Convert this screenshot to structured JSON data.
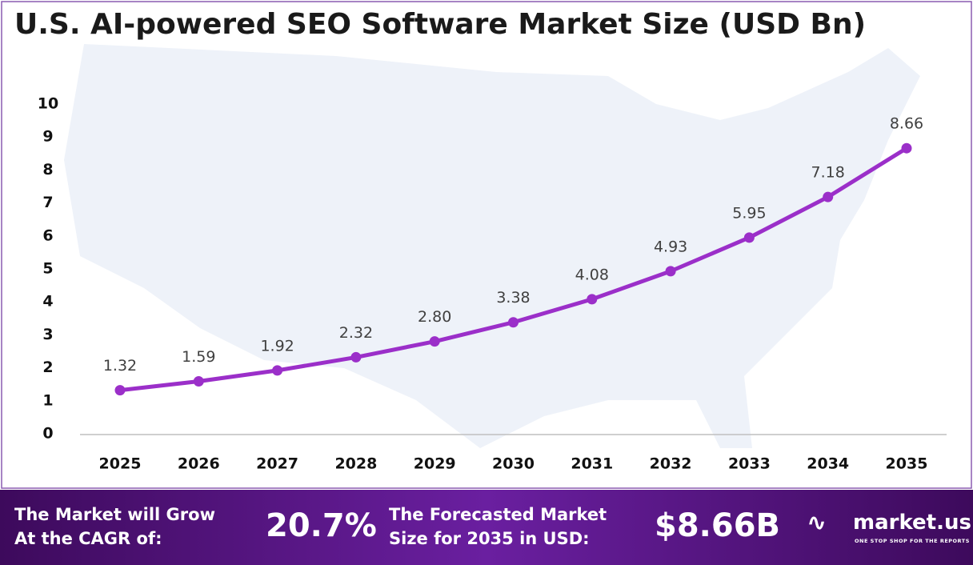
{
  "chart_data": {
    "type": "line",
    "title": "U.S. AI-powered SEO Software Market Size (USD Bn)",
    "categories": [
      "2025",
      "2026",
      "2027",
      "2028",
      "2029",
      "2030",
      "2031",
      "2032",
      "2033",
      "2034",
      "2035"
    ],
    "series": [
      {
        "color": "#9b2fc9",
        "values": [
          1.32,
          1.59,
          1.92,
          2.32,
          2.8,
          3.38,
          4.08,
          4.93,
          5.95,
          7.18,
          8.66
        ],
        "value_labels": [
          "1.32",
          "1.59",
          "1.92",
          "2.32",
          "2.80",
          "3.38",
          "4.08",
          "4.93",
          "5.95",
          "7.18",
          "8.66"
        ]
      }
    ],
    "ylim": [
      0,
      10
    ],
    "yticks": [
      0,
      1,
      2,
      3,
      4,
      5,
      6,
      7,
      8,
      9,
      10
    ],
    "grid": false
  },
  "footer": {
    "cagr_text": [
      "The Market will Grow",
      "At the CAGR of:"
    ],
    "cagr_value": "20.7%",
    "forecast_text": [
      "The Forecasted Market",
      "Size for 2035 in USD:"
    ],
    "forecast_value": "$8.66B",
    "logo": "market.us",
    "tagline": "ONE STOP SHOP FOR THE REPORTS"
  }
}
